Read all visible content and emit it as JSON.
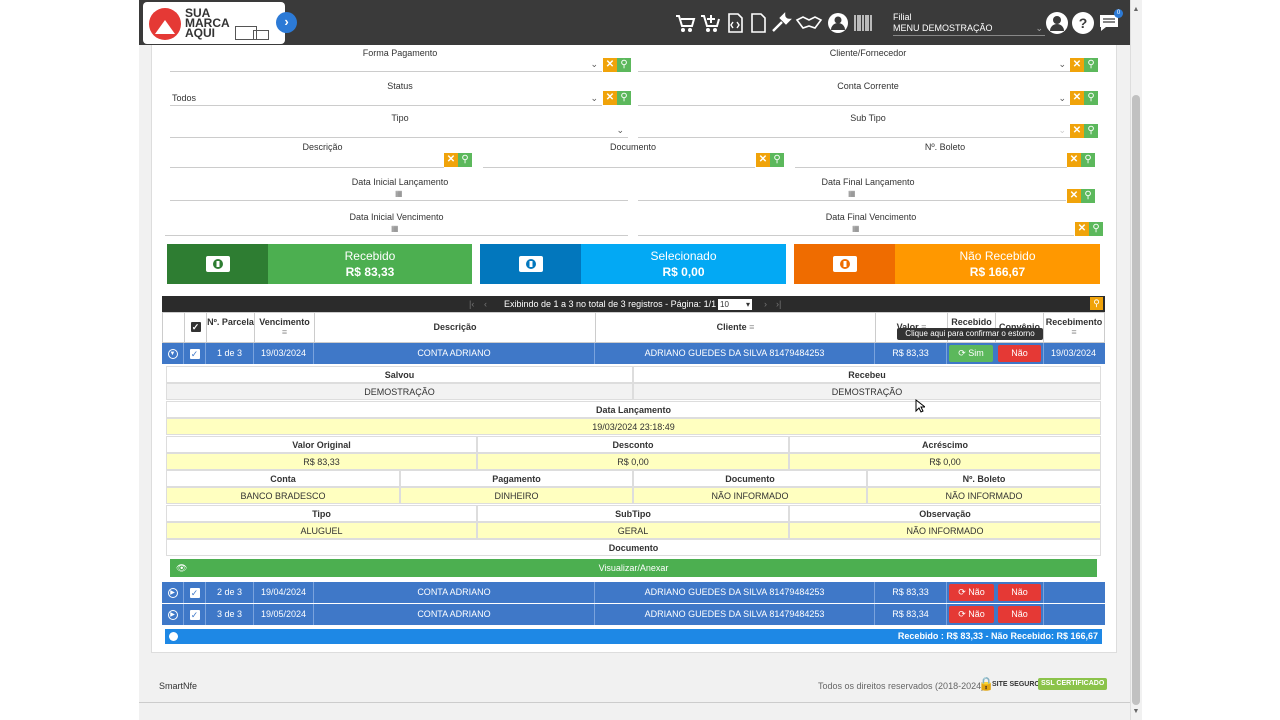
{
  "logo": {
    "line1": "SUA",
    "line2": "MARCA",
    "line3": "AQUI"
  },
  "topbar": {
    "filial_label": "Filial",
    "filial_value": "MENU DEMOSTRAÇÃO",
    "badge": "0",
    "icons": [
      "cart-icon",
      "cart-plus-icon",
      "code-file-icon",
      "file-icon",
      "wrench-icon",
      "handshake-icon",
      "user-circle-icon",
      "barcode-icon"
    ],
    "right_icons": [
      "profile-icon",
      "help-icon",
      "chat-icon"
    ]
  },
  "filters": {
    "forma_pagamento": {
      "label": "Forma Pagamento",
      "value": ""
    },
    "cliente_fornecedor": {
      "label": "Cliente/Fornecedor",
      "value": ""
    },
    "status": {
      "label": "Status",
      "value": "Todos"
    },
    "conta_corrente": {
      "label": "Conta Corrente",
      "value": ""
    },
    "tipo": {
      "label": "Tipo",
      "value": ""
    },
    "sub_tipo": {
      "label": "Sub Tipo",
      "value": ""
    },
    "descricao": {
      "label": "Descrição",
      "value": ""
    },
    "documento": {
      "label": "Documento",
      "value": ""
    },
    "n_boleto": {
      "label": "Nº. Boleto",
      "value": ""
    },
    "data_inicial_lancamento": {
      "label": "Data Inicial Lançamento"
    },
    "data_final_lancamento": {
      "label": "Data Final Lançamento"
    },
    "data_inicial_vencimento": {
      "label": "Data Inicial Vencimento"
    },
    "data_final_vencimento": {
      "label": "Data Final Vencimento"
    }
  },
  "summary": {
    "recebido": {
      "label": "Recebido",
      "value": "R$ 83,33",
      "color": "#4caf50",
      "dark": "#2e7d32"
    },
    "selecionado": {
      "label": "Selecionado",
      "value": "R$ 0,00",
      "color": "#03a9f4",
      "dark": "#0277bd"
    },
    "nao_recebido": {
      "label": "Não Recebido",
      "value": "R$ 166,67",
      "color": "#ff9800",
      "dark": "#ef6c00"
    }
  },
  "pager": {
    "text": "Exibindo de 1 a 3 no total de 3 registros - Página: 1/1",
    "page_size": "10"
  },
  "table": {
    "headers": {
      "parcela": "Nº. Parcela",
      "vencimento": "Vencimento",
      "descricao": "Descrição",
      "cliente": "Cliente",
      "valor": "Valor",
      "recebido": "Recebido",
      "convenio": "Convênio",
      "recebimento": "Recebimento"
    },
    "tooltip": "Clique aqui para confirmar o estorno",
    "rows": [
      {
        "parcela": "1 de 3",
        "vencimento": "19/03/2024",
        "descricao": "CONTA ADRIANO",
        "cliente": "ADRIANO GUEDES DA SILVA 81479484253",
        "valor": "R$ 83,33",
        "recebido": "Sim",
        "convenio": "Não",
        "recebimento": "19/03/2024"
      },
      {
        "parcela": "2 de 3",
        "vencimento": "19/04/2024",
        "descricao": "CONTA ADRIANO",
        "cliente": "ADRIANO GUEDES DA SILVA 81479484253",
        "valor": "R$ 83,33",
        "recebido": "Não",
        "convenio": "Não",
        "recebimento": ""
      },
      {
        "parcela": "3 de 3",
        "vencimento": "19/05/2024",
        "descricao": "CONTA ADRIANO",
        "cliente": "ADRIANO GUEDES DA SILVA 81479484253",
        "valor": "R$ 83,34",
        "recebido": "Não",
        "convenio": "Não",
        "recebimento": ""
      }
    ],
    "footer": "Recebido : R$ 83,33 - Não Recebido: R$ 166,67"
  },
  "detail": {
    "salvou": {
      "label": "Salvou",
      "value": "DEMOSTRAÇÃO"
    },
    "recebeu": {
      "label": "Recebeu",
      "value": "DEMOSTRAÇÃO"
    },
    "data_lancamento": {
      "label": "Data Lançamento",
      "value": "19/03/2024 23:18:49"
    },
    "valor_original": {
      "label": "Valor Original",
      "value": "R$ 83,33"
    },
    "desconto": {
      "label": "Desconto",
      "value": "R$ 0,00"
    },
    "acrescimo": {
      "label": "Acréscimo",
      "value": "R$ 0,00"
    },
    "conta": {
      "label": "Conta",
      "value": "BANCO BRADESCO"
    },
    "pagamento": {
      "label": "Pagamento",
      "value": "DINHEIRO"
    },
    "documento": {
      "label": "Documento",
      "value": "NÃO INFORMADO"
    },
    "n_boleto": {
      "label": "Nº. Boleto",
      "value": "NÃO INFORMADO"
    },
    "tipo": {
      "label": "Tipo",
      "value": "ALUGUEL"
    },
    "subtipo": {
      "label": "SubTipo",
      "value": "GERAL"
    },
    "observacao": {
      "label": "Observação",
      "value": "NÃO INFORMADO"
    },
    "documento_section": "Documento",
    "visualizar": "Visualizar/Anexar"
  },
  "footer": {
    "app_name": "SmartNfe",
    "rights": "Todos os direitos reservados (2018-2024)",
    "site_seguro": "SITE SEGURO",
    "ssl": "SSL CERTIFICADO"
  }
}
